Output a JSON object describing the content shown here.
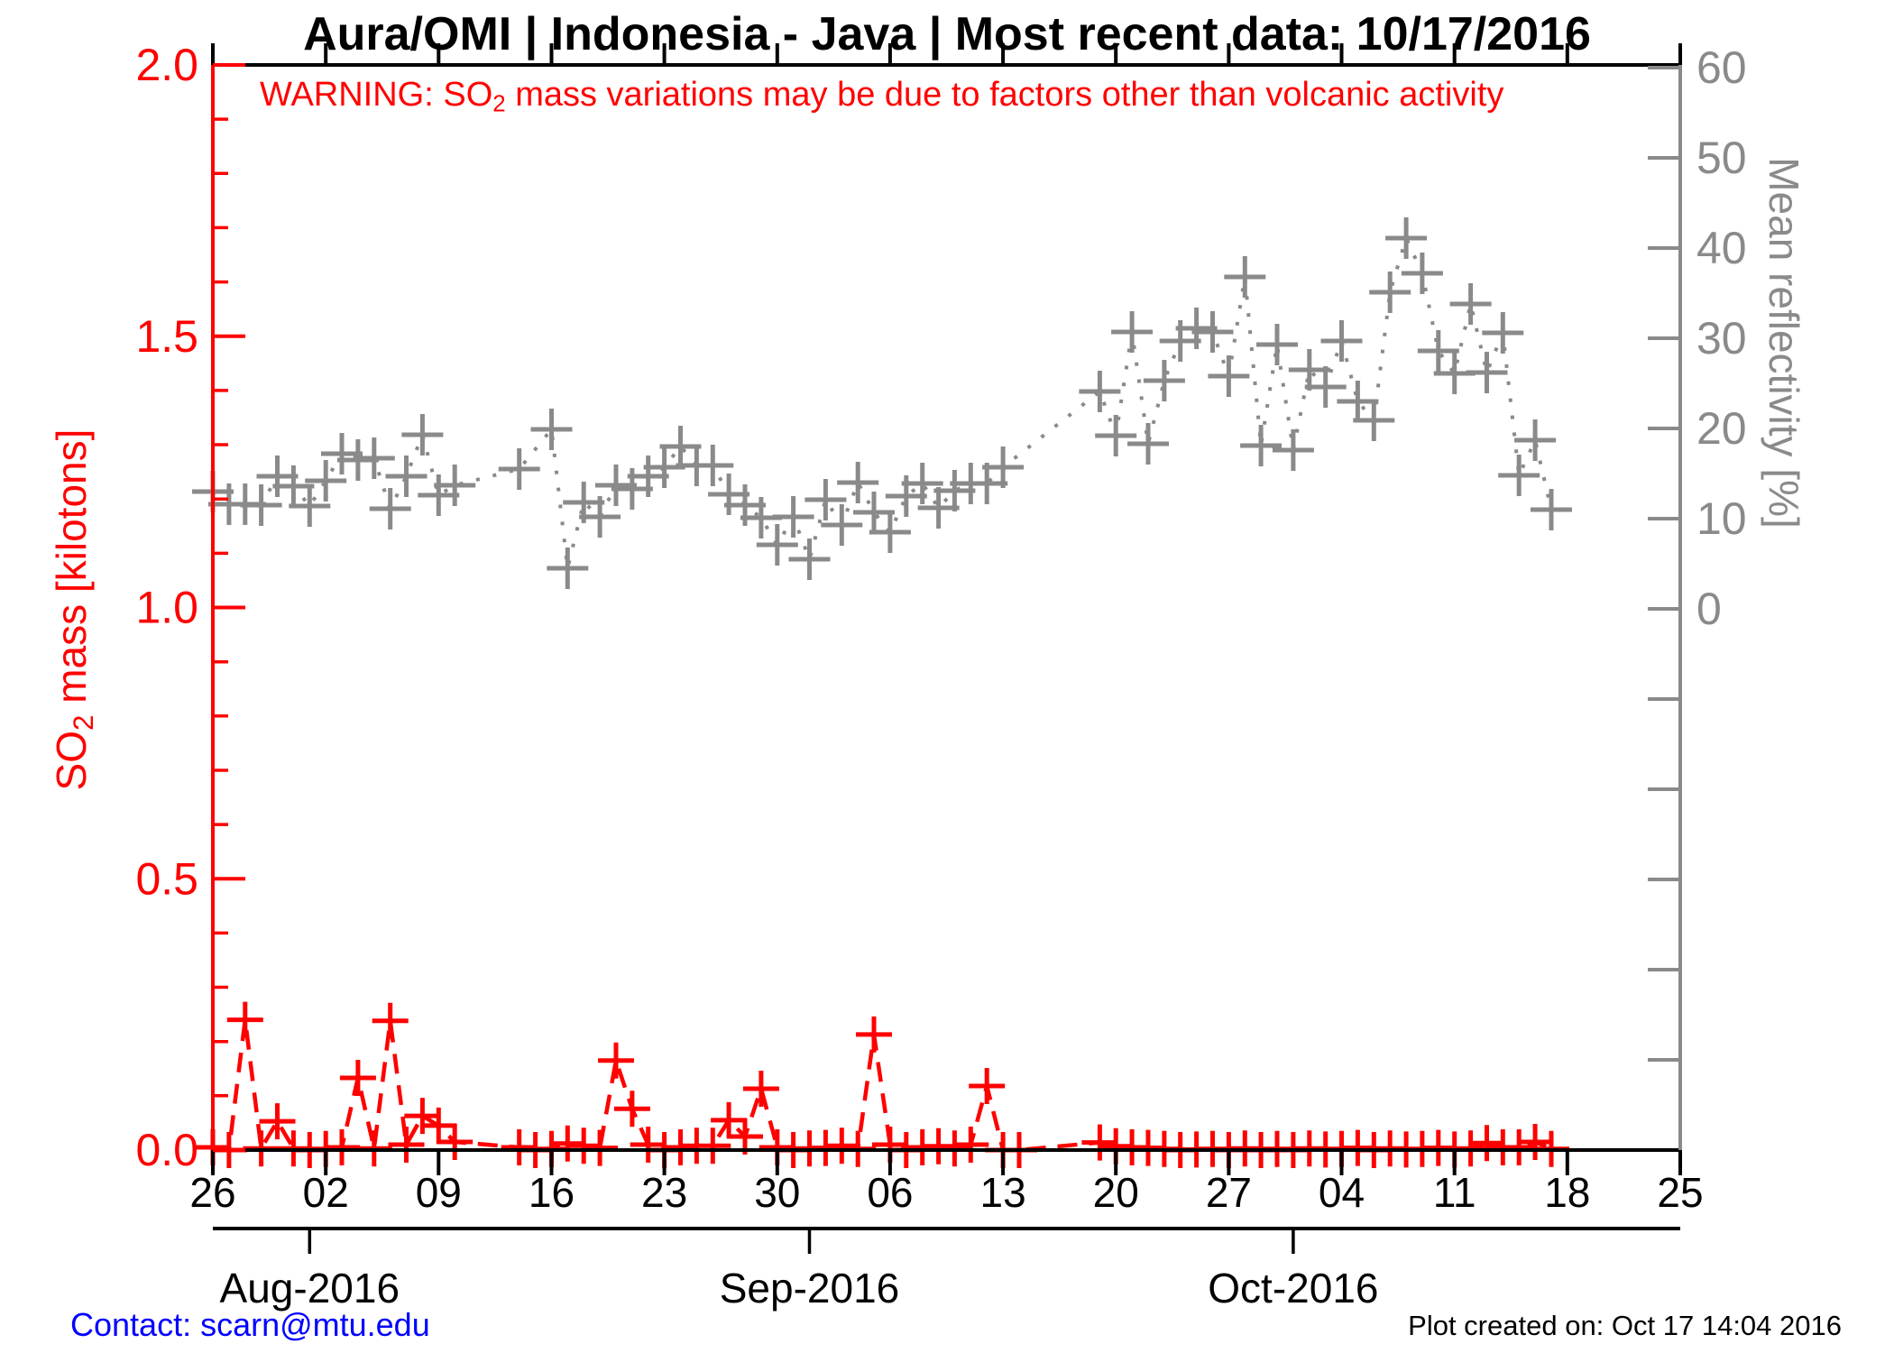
{
  "title": "Aura/OMI | Indonesia - Java | Most recent data: 10/17/2016",
  "warning": {
    "prefix": "WARNING: SO",
    "sub": "2",
    "suffix": " mass variations may be due to factors other than volcanic activity",
    "color": "#ff0000"
  },
  "left_axis": {
    "label_prefix": "SO",
    "label_sub": "2",
    "label_suffix": " mass [kilotons]",
    "color": "#ff0000",
    "tick_labels": [
      "0.0",
      "0.5",
      "1.0",
      "1.5",
      "2.0"
    ],
    "tick_values": [
      0,
      0.5,
      1.0,
      1.5,
      2.0
    ],
    "minor_step": 0.1,
    "range": [
      0,
      2
    ]
  },
  "right_axis": {
    "label": "Mean reflectivity [%]",
    "color": "#8a8a8a",
    "tick_labels": [
      "0",
      "10",
      "20",
      "30",
      "40",
      "50",
      "60"
    ],
    "tick_values": [
      0,
      10,
      20,
      30,
      40,
      50,
      60
    ],
    "unlabeled_tick_values": [
      -50,
      -40,
      -30,
      -20,
      -10
    ],
    "labeled_range": [
      0,
      60
    ]
  },
  "x_axis": {
    "week_tick_labels": [
      "26",
      "02",
      "09",
      "16",
      "23",
      "30",
      "06",
      "13",
      "20",
      "27",
      "04",
      "11",
      "18",
      "25"
    ],
    "week_tick_dates": [
      "2016-07-26",
      "2016-08-02",
      "2016-08-09",
      "2016-08-16",
      "2016-08-23",
      "2016-08-30",
      "2016-09-06",
      "2016-09-13",
      "2016-09-20",
      "2016-09-27",
      "2016-10-04",
      "2016-10-11",
      "2016-10-18",
      "2016-10-25"
    ],
    "month_labels": [
      "Aug-2016",
      "Sep-2016",
      "Oct-2016"
    ],
    "month_label_dates": [
      "2016-08-01",
      "2016-09-01",
      "2016-10-01"
    ],
    "start_date": "2016-07-26",
    "end_date": "2016-10-25"
  },
  "footer": {
    "contact": "Contact: scarn@mtu.edu",
    "contact_color": "#0000ff",
    "created": "Plot created on: Oct 17 14:04 2016"
  },
  "chart_data": {
    "type": "line",
    "title": "Aura/OMI | Indonesia - Java | Most recent data: 10/17/2016",
    "xlabel": "",
    "x_range": [
      "2016-07-26",
      "2016-10-25"
    ],
    "left_ylabel": "SO2 mass [kilotons]",
    "left_ylim": [
      0,
      2
    ],
    "right_ylabel": "Mean reflectivity [%]",
    "right_ylim_labeled": [
      0,
      60
    ],
    "grid": false,
    "legend": "none",
    "series": [
      {
        "name": "SO2 mass",
        "unit": "kilotons",
        "axis": "left",
        "color": "#ff0000",
        "line_style": "dashed",
        "marker": "plus",
        "points": [
          [
            "2016-07-26",
            0.005
          ],
          [
            "2016-07-27",
            0.0
          ],
          [
            "2016-07-28",
            0.24
          ],
          [
            "2016-07-29",
            0.003
          ],
          [
            "2016-07-30",
            0.053
          ],
          [
            "2016-07-31",
            0.003
          ],
          [
            "2016-08-01",
            0.0
          ],
          [
            "2016-08-02",
            0.002
          ],
          [
            "2016-08-03",
            0.005
          ],
          [
            "2016-08-04",
            0.133
          ],
          [
            "2016-08-05",
            0.003
          ],
          [
            "2016-08-06",
            0.238
          ],
          [
            "2016-08-07",
            0.01
          ],
          [
            "2016-08-08",
            0.063
          ],
          [
            "2016-08-09",
            0.045
          ],
          [
            "2016-08-10",
            0.015
          ],
          [
            "2016-08-14",
            0.005
          ],
          [
            "2016-08-15",
            0.0
          ],
          [
            "2016-08-16",
            0.002
          ],
          [
            "2016-08-17",
            0.012
          ],
          [
            "2016-08-18",
            0.008
          ],
          [
            "2016-08-19",
            0.004
          ],
          [
            "2016-08-20",
            0.165
          ],
          [
            "2016-08-21",
            0.076
          ],
          [
            "2016-08-22",
            0.01
          ],
          [
            "2016-08-23",
            0.0
          ],
          [
            "2016-08-24",
            0.005
          ],
          [
            "2016-08-25",
            0.008
          ],
          [
            "2016-08-26",
            0.008
          ],
          [
            "2016-08-27",
            0.055
          ],
          [
            "2016-08-28",
            0.025
          ],
          [
            "2016-08-29",
            0.113
          ],
          [
            "2016-08-30",
            0.005
          ],
          [
            "2016-08-31",
            0.0
          ],
          [
            "2016-09-01",
            0.003
          ],
          [
            "2016-09-02",
            0.004
          ],
          [
            "2016-09-03",
            0.008
          ],
          [
            "2016-09-04",
            0.002
          ],
          [
            "2016-09-05",
            0.213
          ],
          [
            "2016-09-06",
            0.01
          ],
          [
            "2016-09-07",
            0.0
          ],
          [
            "2016-09-08",
            0.005
          ],
          [
            "2016-09-09",
            0.007
          ],
          [
            "2016-09-10",
            0.003
          ],
          [
            "2016-09-11",
            0.01
          ],
          [
            "2016-09-12",
            0.118
          ],
          [
            "2016-09-13",
            0.0
          ],
          [
            "2016-09-14",
            0.0
          ],
          [
            "2016-09-19",
            0.014
          ],
          [
            "2016-09-20",
            0.007
          ],
          [
            "2016-09-21",
            0.005
          ],
          [
            "2016-09-22",
            0.004
          ],
          [
            "2016-09-23",
            0.002
          ],
          [
            "2016-09-24",
            0.0
          ],
          [
            "2016-09-25",
            0.001
          ],
          [
            "2016-09-26",
            0.002
          ],
          [
            "2016-09-27",
            0.0
          ],
          [
            "2016-09-28",
            0.003
          ],
          [
            "2016-09-29",
            0.0
          ],
          [
            "2016-09-30",
            0.002
          ],
          [
            "2016-10-01",
            0.0
          ],
          [
            "2016-10-02",
            0.003
          ],
          [
            "2016-10-03",
            0.001
          ],
          [
            "2016-10-04",
            0.002
          ],
          [
            "2016-10-05",
            0.004
          ],
          [
            "2016-10-06",
            0.0
          ],
          [
            "2016-10-07",
            0.003
          ],
          [
            "2016-10-08",
            0.001
          ],
          [
            "2016-10-09",
            0.002
          ],
          [
            "2016-10-10",
            0.004
          ],
          [
            "2016-10-11",
            0.001
          ],
          [
            "2016-10-12",
            0.003
          ],
          [
            "2016-10-13",
            0.013
          ],
          [
            "2016-10-14",
            0.005
          ],
          [
            "2016-10-15",
            0.005
          ],
          [
            "2016-10-16",
            0.015
          ],
          [
            "2016-10-17",
            0.002
          ]
        ]
      },
      {
        "name": "Mean reflectivity",
        "unit": "%",
        "axis": "right",
        "color": "#8a8a8a",
        "line_style": "dotted",
        "marker": "plus",
        "points": [
          [
            "2016-07-26",
            13.0
          ],
          [
            "2016-07-27",
            11.6
          ],
          [
            "2016-07-28",
            11.6
          ],
          [
            "2016-07-29",
            11.5
          ],
          [
            "2016-07-30",
            14.7
          ],
          [
            "2016-07-31",
            13.6
          ],
          [
            "2016-08-01",
            11.4
          ],
          [
            "2016-08-02",
            14.2
          ],
          [
            "2016-08-03",
            17.2
          ],
          [
            "2016-08-04",
            16.5
          ],
          [
            "2016-08-05",
            16.7
          ],
          [
            "2016-08-06",
            11.1
          ],
          [
            "2016-08-07",
            14.7
          ],
          [
            "2016-08-08",
            19.3
          ],
          [
            "2016-08-09",
            12.6
          ],
          [
            "2016-08-10",
            13.7
          ],
          [
            "2016-08-14",
            15.5
          ],
          [
            "2016-08-16",
            19.9
          ],
          [
            "2016-08-17",
            4.5
          ],
          [
            "2016-08-18",
            11.8
          ],
          [
            "2016-08-19",
            10.2
          ],
          [
            "2016-08-20",
            13.7
          ],
          [
            "2016-08-21",
            13.3
          ],
          [
            "2016-08-22",
            14.7
          ],
          [
            "2016-08-23",
            15.7
          ],
          [
            "2016-08-24",
            18.0
          ],
          [
            "2016-08-25",
            15.9
          ],
          [
            "2016-08-26",
            15.9
          ],
          [
            "2016-08-27",
            12.7
          ],
          [
            "2016-08-28",
            11.5
          ],
          [
            "2016-08-29",
            10.1
          ],
          [
            "2016-08-30",
            7.1
          ],
          [
            "2016-08-31",
            10.2
          ],
          [
            "2016-09-01",
            5.5
          ],
          [
            "2016-09-02",
            12.1
          ],
          [
            "2016-09-03",
            9.3
          ],
          [
            "2016-09-04",
            14.0
          ],
          [
            "2016-09-05",
            10.7
          ],
          [
            "2016-09-06",
            8.5
          ],
          [
            "2016-09-07",
            12.5
          ],
          [
            "2016-09-08",
            13.9
          ],
          [
            "2016-09-09",
            11.2
          ],
          [
            "2016-09-10",
            13.1
          ],
          [
            "2016-09-11",
            13.9
          ],
          [
            "2016-09-12",
            13.9
          ],
          [
            "2016-09-13",
            15.7
          ],
          [
            "2016-09-19",
            24.1
          ],
          [
            "2016-09-20",
            19.2
          ],
          [
            "2016-09-21",
            30.7
          ],
          [
            "2016-09-22",
            18.3
          ],
          [
            "2016-09-23",
            25.3
          ],
          [
            "2016-09-24",
            29.7
          ],
          [
            "2016-09-25",
            31.1
          ],
          [
            "2016-09-26",
            30.7
          ],
          [
            "2016-09-27",
            25.8
          ],
          [
            "2016-09-28",
            36.8
          ],
          [
            "2016-09-29",
            18.1
          ],
          [
            "2016-09-30",
            29.3
          ],
          [
            "2016-10-01",
            17.6
          ],
          [
            "2016-10-02",
            26.5
          ],
          [
            "2016-10-03",
            24.6
          ],
          [
            "2016-10-04",
            29.7
          ],
          [
            "2016-10-05",
            23.0
          ],
          [
            "2016-10-06",
            20.9
          ],
          [
            "2016-10-07",
            35.1
          ],
          [
            "2016-10-08",
            41.1
          ],
          [
            "2016-10-09",
            37.2
          ],
          [
            "2016-10-10",
            28.6
          ],
          [
            "2016-10-11",
            26.1
          ],
          [
            "2016-10-12",
            33.8
          ],
          [
            "2016-10-13",
            26.2
          ],
          [
            "2016-10-14",
            30.6
          ],
          [
            "2016-10-15",
            14.8
          ],
          [
            "2016-10-16",
            18.7
          ],
          [
            "2016-10-17",
            11.0
          ]
        ]
      }
    ]
  }
}
